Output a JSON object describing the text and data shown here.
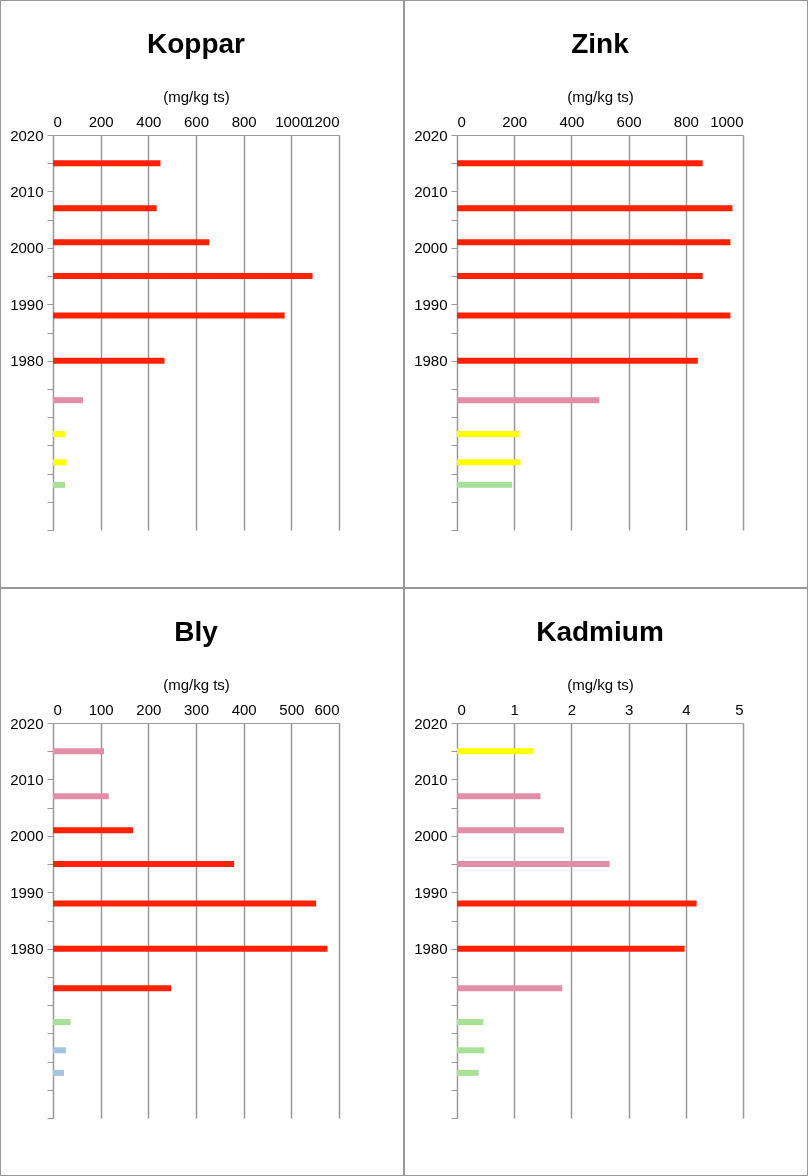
{
  "chart_data": [
    {
      "type": "bar",
      "title": "Koppar",
      "xlabel": "(mg/kg ts)",
      "orientation": "horizontal",
      "grid": "x",
      "x": [
        2015,
        2007,
        2001,
        1995,
        1988,
        1980,
        1973,
        1967,
        1962,
        1958
      ],
      "values": [
        451,
        435,
        656,
        1089,
        972,
        468,
        126,
        51,
        57,
        51
      ],
      "colors": [
        "#ff2200",
        "#ff2200",
        "#ff2200",
        "#ff2200",
        "#ff2200",
        "#ff2200",
        "#e38da6",
        "#ffff00",
        "#ffff00",
        "#a8e09a"
      ],
      "xlim": [
        0,
        1200
      ],
      "xticks": [
        0,
        200,
        400,
        600,
        800,
        1000,
        1200
      ],
      "ylim": [
        1950,
        2020
      ],
      "yticks": [
        2020,
        {
          "value": 2015,
          "label": null
        },
        2010,
        {
          "value": 2005,
          "label": null
        },
        2000,
        {
          "value": 1995,
          "label": null
        },
        1990,
        {
          "value": 1985,
          "label": null
        },
        1980,
        {
          "value": 1975,
          "label": null
        },
        {
          "value": 1970,
          "label": null
        },
        {
          "value": 1965,
          "label": null
        },
        {
          "value": 1960,
          "label": null
        },
        {
          "value": 1955,
          "label": null
        },
        {
          "value": 1950,
          "label": null
        }
      ]
    },
    {
      "type": "bar",
      "title": "Zink",
      "xlabel": "(mg/kg ts)",
      "orientation": "horizontal",
      "grid": "x",
      "x": [
        2015,
        2007,
        2001,
        1995,
        1988,
        1980,
        1973,
        1967,
        1962,
        1958
      ],
      "values": [
        859,
        963,
        956,
        859,
        956,
        842,
        498,
        217,
        222,
        193
      ],
      "colors": [
        "#ff2200",
        "#ff2200",
        "#ff2200",
        "#ff2200",
        "#ff2200",
        "#ff2200",
        "#e38da6",
        "#ffff00",
        "#ffff00",
        "#a8e09a"
      ],
      "xlim": [
        0,
        1000
      ],
      "xticks": [
        0,
        200,
        400,
        600,
        800,
        1000
      ],
      "ylim": [
        1950,
        2020
      ],
      "yticks": [
        2020,
        {
          "value": 2015,
          "label": null
        },
        2010,
        {
          "value": 2005,
          "label": null
        },
        2000,
        {
          "value": 1995,
          "label": null
        },
        1990,
        {
          "value": 1985,
          "label": null
        },
        1980,
        {
          "value": 1975,
          "label": null
        },
        {
          "value": 1970,
          "label": null
        },
        {
          "value": 1965,
          "label": null
        },
        {
          "value": 1960,
          "label": null
        },
        {
          "value": 1955,
          "label": null
        },
        {
          "value": 1950,
          "label": null
        }
      ]
    },
    {
      "type": "bar",
      "title": "Bly",
      "xlabel": "(mg/kg ts)",
      "orientation": "horizontal",
      "grid": "x",
      "x": [
        2015,
        2007,
        2001,
        1995,
        1988,
        1980,
        1973,
        1967,
        1962,
        1958
      ],
      "values": [
        107,
        117,
        168,
        380,
        552,
        576,
        248,
        37,
        27,
        23
      ],
      "colors": [
        "#e38da6",
        "#e38da6",
        "#ff2200",
        "#ff2200",
        "#ff2200",
        "#ff2200",
        "#ff2200",
        "#a8e09a",
        "#a3c3e0",
        "#a3c3e0"
      ],
      "xlim": [
        0,
        600
      ],
      "xticks": [
        0,
        100,
        200,
        300,
        400,
        500,
        600
      ],
      "ylim": [
        1950,
        2020
      ],
      "yticks": [
        2020,
        {
          "value": 2015,
          "label": null
        },
        2010,
        {
          "value": 2005,
          "label": null
        },
        2000,
        {
          "value": 1995,
          "label": null
        },
        1990,
        {
          "value": 1985,
          "label": null
        },
        1980,
        {
          "value": 1975,
          "label": null
        },
        {
          "value": 1970,
          "label": null
        },
        {
          "value": 1965,
          "label": null
        },
        {
          "value": 1960,
          "label": null
        },
        {
          "value": 1955,
          "label": null
        },
        {
          "value": 1950,
          "label": null
        }
      ]
    },
    {
      "type": "bar",
      "title": "Kadmium",
      "xlabel": "(mg/kg ts)",
      "orientation": "horizontal",
      "grid": "x",
      "x": [
        2015,
        2007,
        2001,
        1995,
        1988,
        1980,
        1973,
        1967,
        1962,
        1958
      ],
      "values": [
        1.33,
        1.46,
        1.87,
        2.67,
        4.19,
        3.98,
        1.84,
        0.46,
        0.48,
        0.38
      ],
      "colors": [
        "#ffff00",
        "#e38da6",
        "#e38da6",
        "#e38da6",
        "#ff2200",
        "#ff2200",
        "#e38da6",
        "#a8e09a",
        "#a8e09a",
        "#a8e09a"
      ],
      "xlim": [
        0,
        5
      ],
      "xticks": [
        0,
        1,
        2,
        3,
        4,
        5
      ],
      "ylim": [
        1950,
        2020
      ],
      "yticks": [
        2020,
        {
          "value": 2015,
          "label": null
        },
        2010,
        {
          "value": 2005,
          "label": null
        },
        2000,
        {
          "value": 1995,
          "label": null
        },
        1990,
        {
          "value": 1985,
          "label": null
        },
        1980,
        {
          "value": 1975,
          "label": null
        },
        {
          "value": 1970,
          "label": null
        },
        {
          "value": 1965,
          "label": null
        },
        {
          "value": 1960,
          "label": null
        },
        {
          "value": 1955,
          "label": null
        },
        {
          "value": 1950,
          "label": null
        }
      ]
    }
  ]
}
